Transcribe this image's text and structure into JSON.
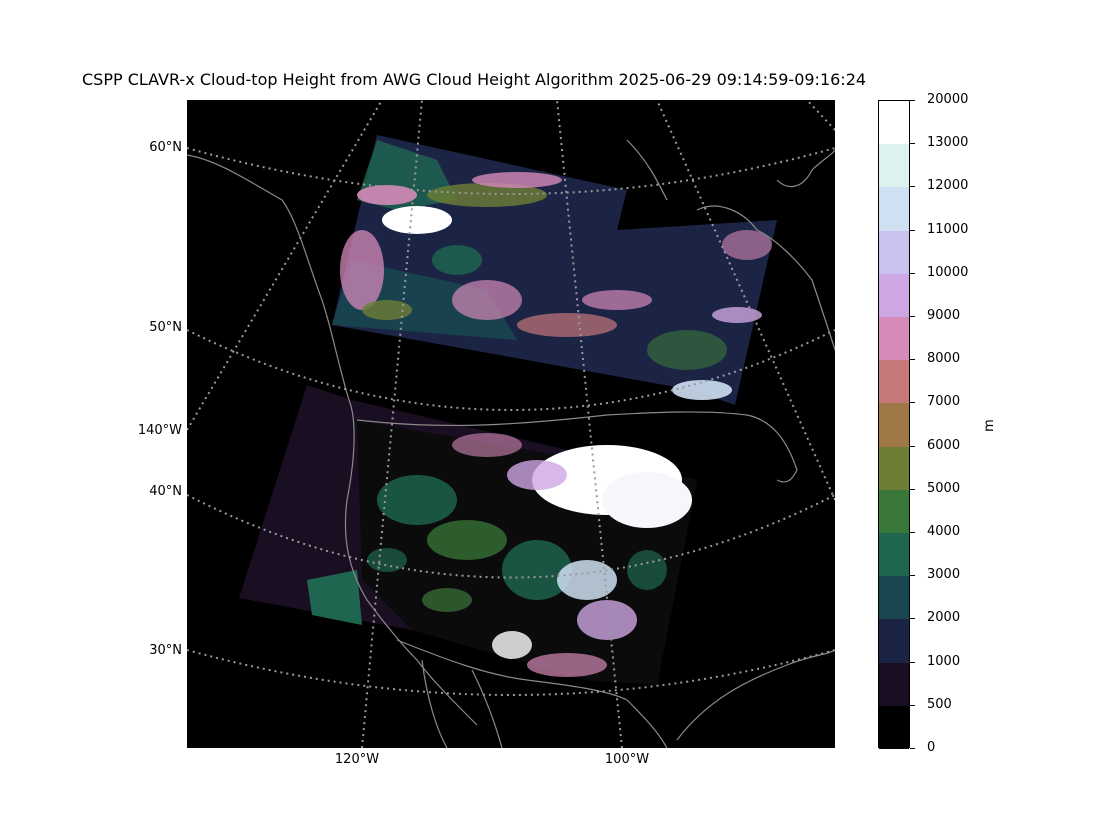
{
  "title": "CSPP CLAVR-x Cloud-top Height from AWG Cloud Height Algorithm 2025-06-29 09:14:59-09:16:24",
  "lat_labels": [
    "60°N",
    "50°N",
    "140°W",
    "40°N",
    "30°N"
  ],
  "lon_labels": [
    "120°W",
    "100°W"
  ],
  "colorbar": {
    "unit": "m",
    "ticks": [
      "0",
      "500",
      "1000",
      "2000",
      "3000",
      "4000",
      "5000",
      "6000",
      "7000",
      "8000",
      "9000",
      "10000",
      "11000",
      "12000",
      "13000",
      "20000"
    ],
    "colors": [
      "#000000",
      "#1a0e22",
      "#1c2446",
      "#1a4650",
      "#1e6650",
      "#3a783a",
      "#6e7e34",
      "#a07848",
      "#c47878",
      "#d68ab8",
      "#cea6e2",
      "#c8c2f0",
      "#cfe0f2",
      "#dcf2ee",
      "#ffffff"
    ]
  }
}
